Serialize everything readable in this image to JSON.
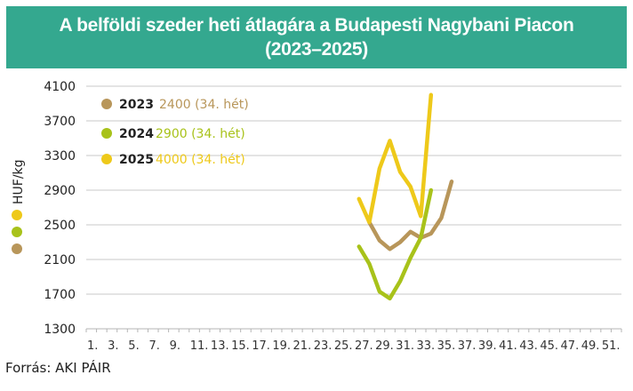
{
  "header": {
    "title_line1": "A belföldi szeder heti átlagára a Budapesti Nagybani Piacon",
    "title_line2": "(2023–2025)"
  },
  "source": "Forrás: AKI PÁIR",
  "colors": {
    "title_bg": "#34a88f",
    "s2023": "#b8965a",
    "s2024": "#a8c21a",
    "s2025": "#eec91a",
    "grid": "#c8c8c8"
  },
  "legend": [
    {
      "year": "2023",
      "value_text": "2400 (34. hét)",
      "color": "#b8965a"
    },
    {
      "year": "2024",
      "value_text": "2900 (34. hét)",
      "color": "#a8c21a"
    },
    {
      "year": "2025",
      "value_text": "4000 (34. hét)",
      "color": "#eec91a"
    }
  ],
  "chart_data": {
    "type": "line",
    "title": "A belföldi szeder heti átlagára a Budapesti Nagybani Piacon (2023–2025)",
    "xlabel": "",
    "ylabel": "HUF/kg",
    "ylim": [
      1300,
      4100
    ],
    "yticks": [
      4100,
      3700,
      3300,
      2900,
      2500,
      2100,
      1700,
      1300
    ],
    "xticks": [
      "1.",
      "3.",
      "5.",
      "7.",
      "9.",
      "11.",
      "13.",
      "15.",
      "17.",
      "19.",
      "21.",
      "23.",
      "25.",
      "27.",
      "29.",
      "31.",
      "33.",
      "35.",
      "37.",
      "39.",
      "41.",
      "43.",
      "45.",
      "47.",
      "49.",
      "51."
    ],
    "x_range_weeks": [
      1,
      52
    ],
    "grid": true,
    "legend_position": "upper-left inside",
    "series": [
      {
        "name": "2023",
        "color": "#b8965a",
        "weeks": [
          28,
          29,
          30,
          31,
          32,
          33,
          34,
          35,
          36
        ],
        "values": [
          2530,
          2320,
          2220,
          2300,
          2420,
          2350,
          2400,
          2580,
          3000
        ]
      },
      {
        "name": "2024",
        "color": "#a8c21a",
        "weeks": [
          27,
          28,
          29,
          30,
          31,
          32,
          33,
          34
        ],
        "values": [
          2250,
          2050,
          1730,
          1650,
          1850,
          2120,
          2350,
          2900
        ]
      },
      {
        "name": "2025",
        "color": "#eec91a",
        "weeks": [
          27,
          28,
          29,
          30,
          31,
          32,
          33,
          34
        ],
        "values": [
          2800,
          2530,
          3150,
          3470,
          3110,
          2940,
          2600,
          4000
        ]
      }
    ],
    "annotations": [
      "2023 2400 (34. hét)",
      "2024 2900 (34. hét)",
      "2025 4000 (34. hét)"
    ]
  }
}
